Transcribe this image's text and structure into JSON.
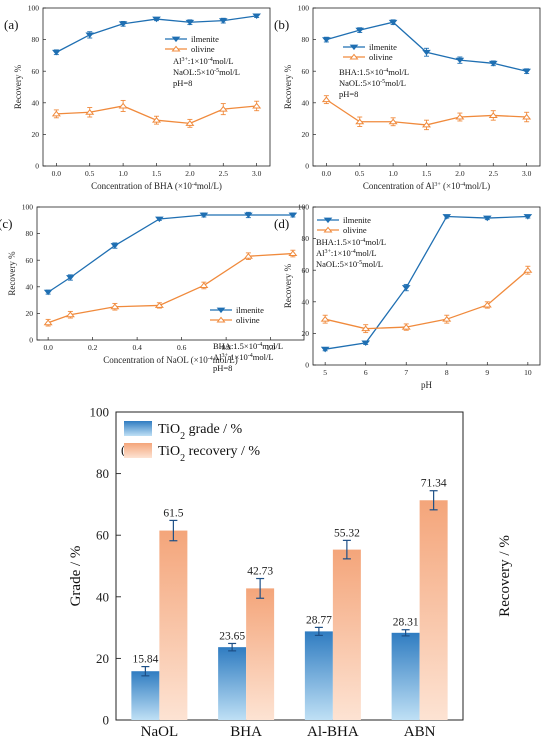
{
  "colors": {
    "ilmenite": "#1f6fb2",
    "olivine": "#f08a3c",
    "grade_top": "#2f7cc1",
    "grade_bottom": "#bfe0f5",
    "recovery_top": "#f4a57a",
    "recovery_bottom": "#fde3d3"
  },
  "chart_data": [
    {
      "id": "a",
      "panel_label": "(a)",
      "type": "line",
      "xlabel_main": "Concentration of BHA (",
      "xlabel_sup": "-4",
      "xlabel_unit": "mol/L)",
      "ylabel": "Recovery %",
      "xlim": [
        -0.2,
        3.2
      ],
      "ylim": [
        0,
        100
      ],
      "xticks": [
        0.0,
        0.5,
        1.0,
        1.5,
        2.0,
        2.5,
        3.0
      ],
      "xtick_labels": [
        "0.0",
        "0.5",
        "1.0",
        "1.5",
        "2.0",
        "2.5",
        "3.0"
      ],
      "yticks": [
        0,
        20,
        40,
        60,
        80,
        100
      ],
      "series": [
        {
          "name": "ilmenite",
          "x": [
            0.0,
            0.5,
            1.0,
            1.5,
            2.0,
            2.5,
            3.0
          ],
          "values": [
            72,
            83,
            90,
            93,
            91,
            92,
            95
          ],
          "err": [
            1.5,
            2,
            1.5,
            1,
            1.5,
            1.5,
            1
          ]
        },
        {
          "name": "olivine",
          "x": [
            0.0,
            0.5,
            1.0,
            1.5,
            2.0,
            2.5,
            3.0
          ],
          "values": [
            33,
            34,
            38,
            29,
            27,
            36,
            38
          ],
          "err": [
            2.5,
            3,
            3.5,
            2.5,
            2.5,
            3.5,
            3
          ]
        }
      ],
      "notes": [
        {
          "main": "Al",
          "sup": "3+",
          "rest": ":1×10",
          "sup2": "-4",
          "tail": "mol/L"
        },
        {
          "main": "NaOL:5×10",
          "sup": "-5",
          "rest": "mol/L",
          "sup2": "",
          "tail": ""
        },
        {
          "main": "pH=8",
          "sup": "",
          "rest": "",
          "sup2": "",
          "tail": ""
        }
      ]
    },
    {
      "id": "b",
      "panel_label": "(b)",
      "type": "line",
      "xlabel_main": "Concentration of Al",
      "xlabel_sup": "3+",
      "xlabel_unit": " (×10",
      "xlabel_sup2": "-4",
      "xlabel_tail": "mol/L)",
      "ylabel": "Recovery %",
      "xlim": [
        -0.2,
        3.2
      ],
      "ylim": [
        0,
        100
      ],
      "xticks": [
        0.0,
        0.5,
        1.0,
        1.5,
        2.0,
        2.5,
        3.0
      ],
      "xtick_labels": [
        "0.0",
        "0.5",
        "1.0",
        "1.5",
        "2.0",
        "2.5",
        "3.0"
      ],
      "yticks": [
        0,
        20,
        40,
        60,
        80,
        100
      ],
      "series": [
        {
          "name": "ilmenite",
          "x": [
            0.0,
            0.5,
            1.0,
            1.5,
            2.0,
            2.5,
            3.0
          ],
          "values": [
            80,
            86,
            91,
            72,
            67,
            65,
            60
          ],
          "err": [
            1.5,
            1.5,
            1.5,
            2.5,
            2,
            1.5,
            1.5
          ]
        },
        {
          "name": "olivine",
          "x": [
            0.0,
            0.5,
            1.0,
            1.5,
            2.0,
            2.5,
            3.0
          ],
          "values": [
            42,
            28,
            28,
            26,
            31,
            32,
            31
          ],
          "err": [
            2.5,
            3,
            2.5,
            3,
            2.5,
            3,
            3
          ]
        }
      ],
      "notes": [
        {
          "main": "BHA:1.5×10",
          "sup": "-4",
          "rest": "mol/L",
          "sup2": "",
          "tail": ""
        },
        {
          "main": "NaOL:5×10",
          "sup": "-5",
          "rest": "mol/L",
          "sup2": "",
          "tail": ""
        },
        {
          "main": "pH=8",
          "sup": "",
          "rest": "",
          "sup2": "",
          "tail": ""
        }
      ]
    },
    {
      "id": "c",
      "panel_label": "(c)",
      "type": "line",
      "xlabel_main": "Concentration of NaOL (",
      "xlabel_sup": "-4",
      "xlabel_unit": "mol/L)",
      "ylabel": "Recovery %",
      "xlim": [
        -0.05,
        1.15
      ],
      "ylim": [
        0,
        100
      ],
      "xticks": [
        0.0,
        0.2,
        0.4,
        0.6,
        0.8,
        1.0
      ],
      "xtick_labels": [
        "0.0",
        "0.2",
        "0.4",
        "0.6",
        "0.8",
        "1.0"
      ],
      "yticks": [
        0,
        20,
        40,
        60,
        80,
        100
      ],
      "series": [
        {
          "name": "ilmenite",
          "x": [
            0.0,
            0.1,
            0.3,
            0.5,
            0.7,
            0.9,
            1.1
          ],
          "values": [
            36,
            47,
            71,
            91,
            94,
            94,
            94
          ],
          "err": [
            1.5,
            2,
            2,
            1,
            1.5,
            2,
            1.5
          ]
        },
        {
          "name": "olivine",
          "x": [
            0.0,
            0.1,
            0.3,
            0.5,
            0.7,
            0.9,
            1.1
          ],
          "values": [
            13,
            19,
            25,
            26,
            41,
            63,
            65
          ],
          "err": [
            2.5,
            2.5,
            2.5,
            2,
            2.5,
            2.5,
            2.5
          ]
        }
      ],
      "notes": [
        {
          "main": "BHA:1.5×10",
          "sup": "-4",
          "rest": "mol/L",
          "sup2": "",
          "tail": ""
        },
        {
          "main": "Al",
          "sup": "3+",
          "rest": ":1×10",
          "sup2": "-4",
          "tail": "mol/L"
        },
        {
          "main": "pH=8",
          "sup": "",
          "rest": "",
          "sup2": "",
          "tail": ""
        }
      ]
    },
    {
      "id": "d",
      "panel_label": "(d)",
      "type": "line",
      "xlabel_main": "pH",
      "xlabel_sup": "",
      "xlabel_unit": "",
      "ylabel": "Recovery %",
      "xlim": [
        4.7,
        10.3
      ],
      "ylim": [
        0,
        100
      ],
      "xticks": [
        5,
        6,
        7,
        8,
        9,
        10
      ],
      "xtick_labels": [
        "5",
        "6",
        "7",
        "8",
        "9",
        "10"
      ],
      "yticks": [
        0,
        20,
        40,
        60,
        80,
        100
      ],
      "series": [
        {
          "name": "ilmenite",
          "x": [
            5,
            6,
            7,
            8,
            9,
            10
          ],
          "values": [
            10,
            14,
            49,
            94,
            93,
            94
          ],
          "err": [
            1,
            1,
            2,
            1,
            1,
            1
          ]
        },
        {
          "name": "olivine",
          "x": [
            5,
            6,
            7,
            8,
            9,
            10
          ],
          "values": [
            29,
            23,
            24,
            29,
            38,
            60
          ],
          "err": [
            2.5,
            2.5,
            2,
            2.5,
            2,
            2.5
          ]
        }
      ],
      "notes": [
        {
          "main": "BHA:1.5×10",
          "sup": "-4",
          "rest": "mol/L",
          "sup2": "",
          "tail": ""
        },
        {
          "main": "Al",
          "sup": "3+",
          "rest": ":1×10",
          "sup2": "-4",
          "tail": "mol/L"
        },
        {
          "main": "NaOL:5×10",
          "sup": "-5",
          "rest": "mol/L",
          "sup2": "",
          "tail": ""
        }
      ]
    },
    {
      "id": "e",
      "panel_label": "(e)",
      "type": "bar",
      "categories": [
        "NaOL",
        "BHA",
        "Al-BHA",
        "ABN"
      ],
      "ylabel_left": "Grade / %",
      "ylabel_right": "Recovery / %",
      "ylim": [
        0,
        100
      ],
      "yticks": [
        0,
        20,
        40,
        60,
        80,
        100
      ],
      "series": [
        {
          "name_main": "TiO",
          "name_sub": "2",
          "name_rest": " grade / %",
          "values": [
            15.84,
            23.65,
            28.77,
            28.31
          ],
          "labels": [
            "15.84",
            "23.65",
            "28.77",
            "28.31"
          ],
          "err": [
            1.5,
            1.2,
            1.3,
            1.0
          ]
        },
        {
          "name_main": "TiO",
          "name_sub": "2",
          "name_rest": " recovery / %",
          "values": [
            61.5,
            42.73,
            55.32,
            71.34
          ],
          "labels": [
            "61.5",
            "42.73",
            "55.32",
            "71.34"
          ],
          "err": [
            3.3,
            3.2,
            3.0,
            3.1
          ]
        }
      ]
    }
  ]
}
